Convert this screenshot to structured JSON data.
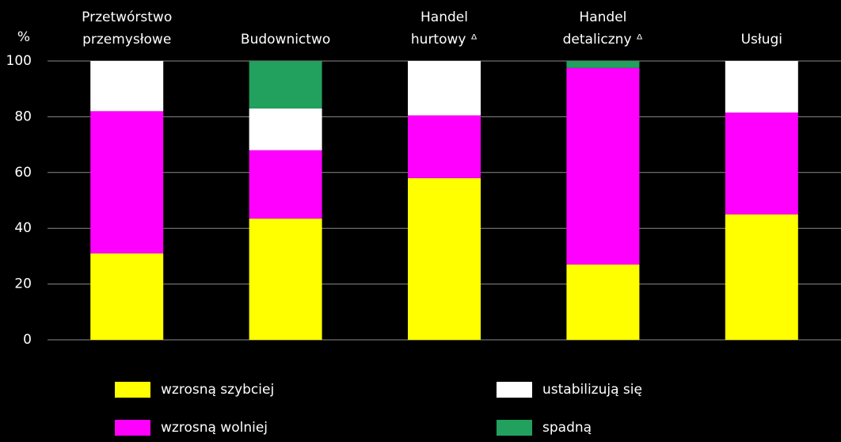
{
  "chart_data": {
    "type": "stacked_bar",
    "y_label": "%",
    "categories": [
      [
        "Przetwórstwo",
        "przemysłowe"
      ],
      [
        "Budownictwo"
      ],
      [
        "Handel",
        "hurtowy ᐞ"
      ],
      [
        "Handel",
        "detaliczny ᐞ"
      ],
      [
        "Usługi"
      ]
    ],
    "series": [
      {
        "name": "wzrosną szybciej",
        "color": "#ffff00",
        "values": [
          31,
          43.5,
          58,
          27,
          45
        ]
      },
      {
        "name": "wzrosną wolniej",
        "color": "#ff00ff",
        "values": [
          51,
          24.5,
          22.5,
          70.5,
          36.5
        ]
      },
      {
        "name": "ustabilizują się",
        "color": "#ffffff",
        "values": [
          18,
          15,
          19.5,
          0,
          18.5
        ]
      },
      {
        "name": "spadną",
        "color": "#22a05e",
        "values": [
          0,
          17,
          0,
          2.5,
          0
        ]
      }
    ],
    "ylim": [
      0,
      100
    ],
    "yticks": [
      0,
      20,
      40,
      60,
      80,
      100
    ],
    "grid": true
  }
}
